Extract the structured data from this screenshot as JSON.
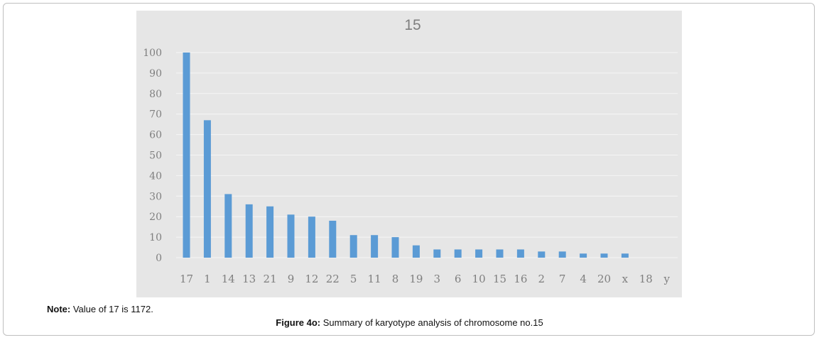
{
  "figure": {
    "note_label": "Note:",
    "note_text": " Value of 17 is 1172.",
    "caption_label": "Figure 4o:",
    "caption_text": " Summary of karyotype analysis of chromosome no.15"
  },
  "chart_data": {
    "type": "bar",
    "title": "15",
    "xlabel": "",
    "ylabel": "",
    "categories": [
      "17",
      "1",
      "14",
      "13",
      "21",
      "9",
      "12",
      "22",
      "5",
      "11",
      "8",
      "19",
      "3",
      "6",
      "10",
      "15",
      "16",
      "2",
      "7",
      "4",
      "20",
      "x",
      "18",
      "y"
    ],
    "values": [
      100,
      67,
      31,
      26,
      25,
      21,
      20,
      18,
      11,
      11,
      10,
      6,
      4,
      4,
      4,
      4,
      4,
      3,
      3,
      2,
      2,
      2,
      0,
      0
    ],
    "ylim": [
      0,
      100
    ],
    "yticks": [
      0,
      10,
      20,
      30,
      40,
      50,
      60,
      70,
      80,
      90,
      100
    ],
    "grid": true,
    "legend": "none",
    "colors": {
      "bar": "#5b9bd5",
      "background": "#e6e6e6",
      "gridline": "#f5f5f5",
      "tick_text": "#7f7f7f",
      "title_text": "#7f7f7f"
    }
  }
}
